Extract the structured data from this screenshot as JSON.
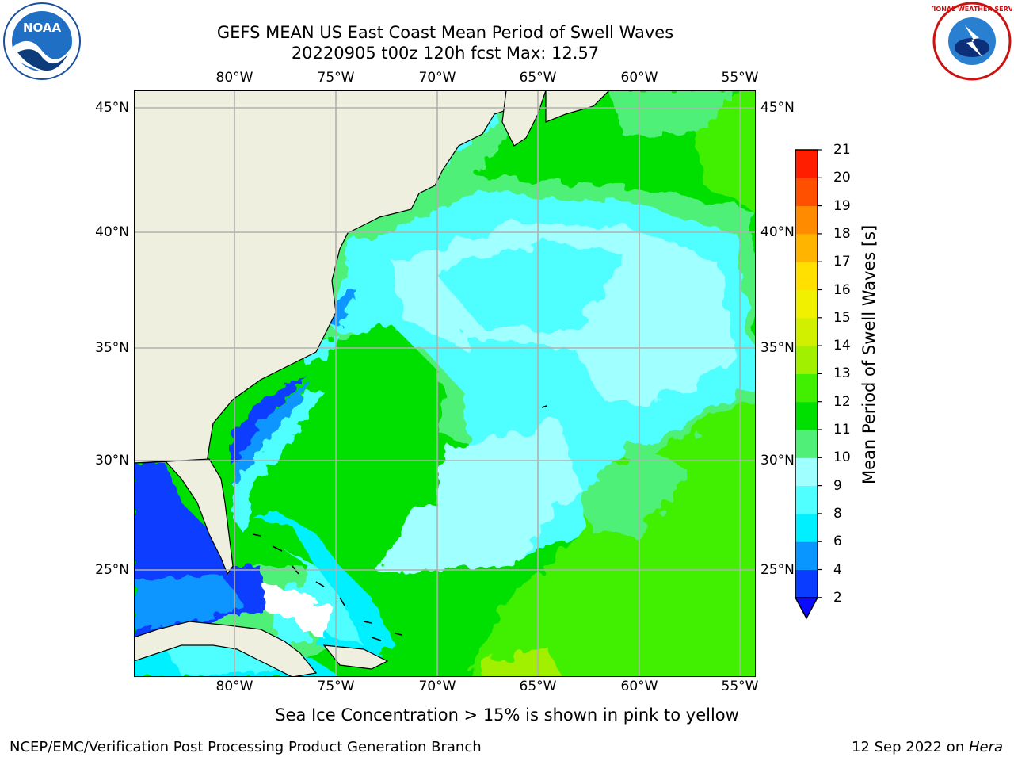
{
  "header": {
    "title_line1": "GEFS MEAN US East Coast Mean Period of Swell Waves",
    "title_line2": "20220905 t00z 120h fcst   Max: 12.57"
  },
  "logos": {
    "left": {
      "text": "NOAA",
      "icon": "noaa-logo-icon"
    },
    "right": {
      "text": "NATIONAL WEATHER SERVICE",
      "icon": "nws-logo-icon"
    }
  },
  "map": {
    "lon_labels": [
      "80°W",
      "75°W",
      "70°W",
      "65°W",
      "60°W",
      "55°W"
    ],
    "lat_labels": [
      "45°N",
      "40°N",
      "35°N",
      "30°N",
      "25°N"
    ],
    "colors": {
      "land": "#efefdf",
      "grid": "#b0b0b0",
      "coast": "#000000"
    }
  },
  "colorbar": {
    "title": "Mean Period of Swell Waves [s]",
    "levels": [
      "2",
      "4",
      "6",
      "8",
      "9",
      "10",
      "11",
      "12",
      "13",
      "14",
      "15",
      "16",
      "17",
      "18",
      "19",
      "20",
      "21"
    ],
    "colors": [
      "#0a3cff",
      "#0a96ff",
      "#00f0ff",
      "#50ffff",
      "#a0ffff",
      "#50f078",
      "#00e000",
      "#40f000",
      "#a0f000",
      "#d0f000",
      "#f0f000",
      "#ffe000",
      "#ffb400",
      "#ff8c00",
      "#ff5000",
      "#ff1e00"
    ],
    "underflow_color": "#0a0aff"
  },
  "notes": {
    "ice": "Sea Ice Concentration > 15% is shown in pink to yellow"
  },
  "footer": {
    "left": "NCEP/EMC/Verification Post Processing Product Generation Branch",
    "date": "12 Sep 2022 on ",
    "host": "Hera"
  }
}
